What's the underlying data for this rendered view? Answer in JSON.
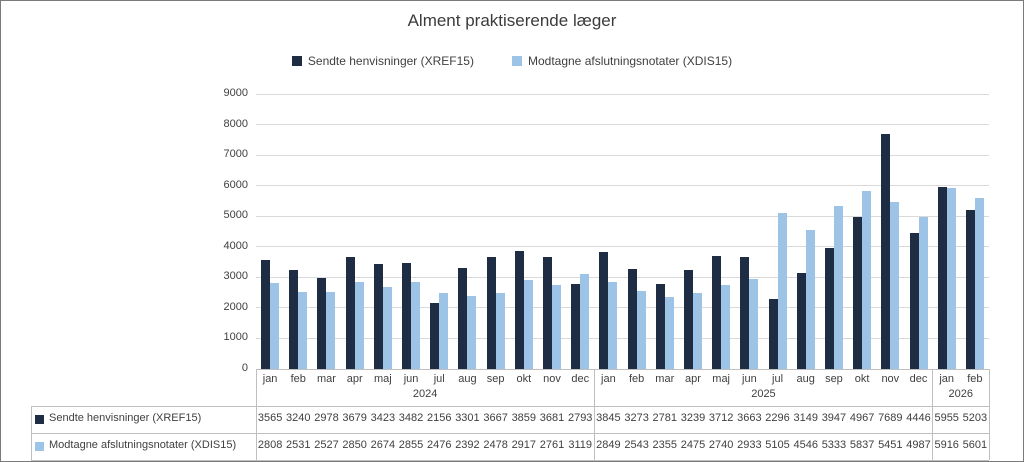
{
  "title": "Alment praktiserende læger",
  "chart_data": {
    "type": "bar",
    "title": "Alment praktiserende læger",
    "ylim": [
      0,
      9000
    ],
    "ytick_step": 1000,
    "grid": true,
    "legend_position": "top",
    "axis_text_color": "#404040",
    "gridline_color": "#D9D9D9",
    "border_color": "#BFBFBF",
    "categories": [
      "jan",
      "feb",
      "mar",
      "apr",
      "maj",
      "jun",
      "jul",
      "aug",
      "sep",
      "okt",
      "nov",
      "dec",
      "jan",
      "feb",
      "mar",
      "apr",
      "maj",
      "jun",
      "jul",
      "aug",
      "sep",
      "okt",
      "nov",
      "dec",
      "jan",
      "feb"
    ],
    "year_groups": [
      {
        "label": "2024",
        "span": 12
      },
      {
        "label": "2025",
        "span": 12
      },
      {
        "label": "2026",
        "span": 2
      }
    ],
    "series": [
      {
        "name": "Sendte henvisninger (XREF15)",
        "color": "#1F2D44",
        "values": [
          3565,
          3240,
          2978,
          3679,
          3423,
          3482,
          2156,
          3301,
          3667,
          3859,
          3681,
          2793,
          3845,
          3273,
          2781,
          3239,
          3712,
          3663,
          2296,
          3149,
          3947,
          4967,
          7689,
          4446,
          5955,
          5203
        ]
      },
      {
        "name": "Modtagne afslutningsnotater (XDIS15)",
        "color": "#9DC3E6",
        "values": [
          2808,
          2531,
          2527,
          2850,
          2674,
          2855,
          2476,
          2392,
          2478,
          2917,
          2761,
          3119,
          2849,
          2543,
          2355,
          2475,
          2740,
          2933,
          5105,
          4546,
          5333,
          5837,
          5451,
          4987,
          5916,
          5601
        ]
      }
    ]
  }
}
